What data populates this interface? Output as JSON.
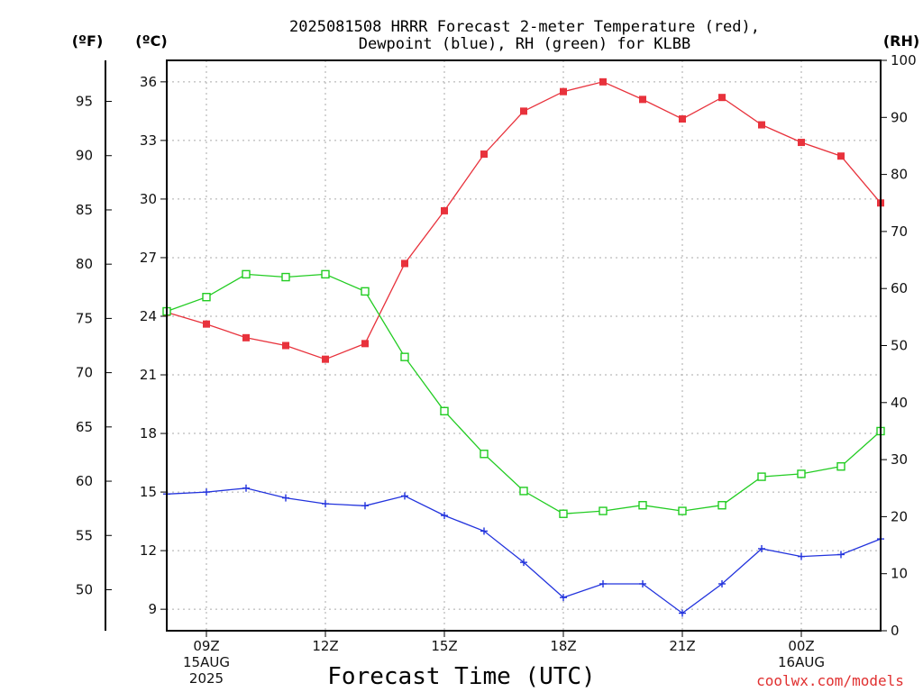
{
  "chart_data": {
    "type": "line",
    "title": [
      "2025081508 HRRR Forecast 2-meter Temperature (red),",
      "Dewpoint (blue), RH (green) for KLBB"
    ],
    "xlabel": "Forecast Time (UTC)",
    "credit": "coolwx.com/models",
    "units": {
      "fahrenheit": "(ºF)",
      "celsius": "(ºC)",
      "rh": "(RH)"
    },
    "x": [
      "08Z",
      "09Z",
      "10Z",
      "11Z",
      "12Z",
      "13Z",
      "14Z",
      "15Z",
      "16Z",
      "17Z",
      "18Z",
      "19Z",
      "20Z",
      "21Z",
      "22Z",
      "23Z",
      "00Z",
      "01Z",
      "02Z"
    ],
    "x_ticks": [
      {
        "index": 1,
        "lines": [
          "09Z",
          "15AUG",
          "2025"
        ]
      },
      {
        "index": 4,
        "lines": [
          "12Z"
        ]
      },
      {
        "index": 7,
        "lines": [
          "15Z"
        ]
      },
      {
        "index": 10,
        "lines": [
          "18Z"
        ]
      },
      {
        "index": 13,
        "lines": [
          "21Z"
        ]
      },
      {
        "index": 16,
        "lines": [
          "00Z",
          "16AUG"
        ]
      }
    ],
    "celsius_ylim": [
      7.9,
      37.1
    ],
    "celsius_ticks": [
      9,
      12,
      15,
      18,
      21,
      24,
      27,
      30,
      33,
      36
    ],
    "fahrenheit_ticks": [
      50,
      55,
      60,
      65,
      70,
      75,
      80,
      85,
      90,
      95
    ],
    "rh_ylim": [
      0,
      100
    ],
    "rh_ticks": [
      0,
      10,
      20,
      30,
      40,
      50,
      60,
      70,
      80,
      90,
      100
    ],
    "grid": true,
    "series": [
      {
        "name": "Temperature",
        "axis": "celsius",
        "color": "#e8323c",
        "marker": "filled-square",
        "values": [
          24.2,
          23.6,
          22.9,
          22.5,
          21.8,
          22.6,
          26.7,
          29.4,
          32.3,
          34.5,
          35.5,
          36.0,
          35.1,
          34.1,
          35.2,
          33.8,
          32.9,
          32.2,
          29.8
        ]
      },
      {
        "name": "Dewpoint",
        "axis": "celsius",
        "color": "#2233dd",
        "marker": "plus",
        "values": [
          14.9,
          15.0,
          15.2,
          14.7,
          14.4,
          14.3,
          14.8,
          13.8,
          13.0,
          11.4,
          9.6,
          10.3,
          10.3,
          8.8,
          10.3,
          12.1,
          11.7,
          11.8,
          12.6
        ]
      },
      {
        "name": "RH",
        "axis": "rh",
        "color": "#22cc22",
        "marker": "open-square",
        "values": [
          56,
          58.5,
          62.5,
          62,
          62.5,
          59.5,
          48,
          38.5,
          31,
          24.5,
          20.5,
          21,
          22,
          21,
          22,
          27,
          27.5,
          28.8,
          35
        ]
      }
    ]
  }
}
